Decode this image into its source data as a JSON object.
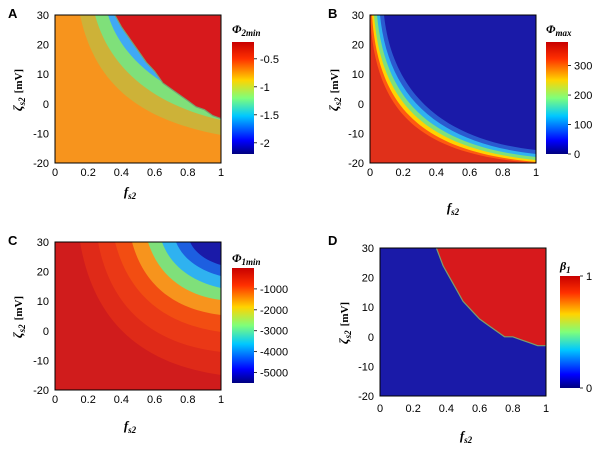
{
  "chart_data": [
    {
      "type": "heatmap",
      "panel": "A",
      "colorbar_label": {
        "main": "Φ",
        "sub": "2min"
      },
      "xlabel": {
        "main": "f",
        "sub": "s2"
      },
      "ylabel": {
        "main": "ζ",
        "sub": "s2",
        "unit": "[mV]"
      },
      "xlim": [
        0,
        1
      ],
      "ylim": [
        -20,
        30
      ],
      "xticks": [
        "0",
        "0.2",
        "0.4",
        "0.6",
        "0.8",
        "1"
      ],
      "yticks": [
        "30",
        "20",
        "10",
        "0",
        "-10",
        "-20"
      ],
      "colorbar_range": [
        -2.2,
        -0.2
      ],
      "colorbar_ticks": [
        "-0.5",
        "-1",
        "-1.5",
        "-2"
      ],
      "colorbar_tick_values": [
        -0.5,
        -1,
        -1.5,
        -2
      ],
      "boundary": [
        [
          0.36,
          30
        ],
        [
          0.4,
          26
        ],
        [
          0.45,
          22
        ],
        [
          0.5,
          18
        ],
        [
          0.55,
          14
        ],
        [
          0.6,
          11
        ],
        [
          0.65,
          7
        ],
        [
          0.7,
          5
        ],
        [
          0.75,
          3
        ],
        [
          0.8,
          1
        ],
        [
          0.85,
          -1
        ],
        [
          0.9,
          -2
        ],
        [
          0.95,
          -4
        ],
        [
          1.0,
          -5
        ]
      ]
    },
    {
      "type": "heatmap",
      "panel": "B",
      "colorbar_label": {
        "main": "Φ",
        "sub": "max"
      },
      "xlabel": {
        "main": "f",
        "sub": "s2"
      },
      "ylabel": {
        "main": "ζ",
        "sub": "s2",
        "unit": "[mV]"
      },
      "xlim": [
        0,
        1
      ],
      "ylim": [
        -20,
        30
      ],
      "xticks": [
        "0",
        "0.2",
        "0.4",
        "0.6",
        "0.8",
        "1"
      ],
      "yticks": [
        "30",
        "20",
        "10",
        "0",
        "-10",
        "-20"
      ],
      "colorbar_range": [
        0,
        380
      ],
      "colorbar_ticks": [
        "300",
        "200",
        "100",
        "0"
      ],
      "colorbar_tick_values": [
        300,
        200,
        100,
        0
      ]
    },
    {
      "type": "heatmap",
      "panel": "C",
      "colorbar_label": {
        "main": "Φ",
        "sub": "1min"
      },
      "xlabel": {
        "main": "f",
        "sub": "s2"
      },
      "ylabel": {
        "main": "ζ",
        "sub": "s2",
        "unit": "[mV]"
      },
      "xlim": [
        0,
        1
      ],
      "ylim": [
        -20,
        30
      ],
      "xticks": [
        "0",
        "0.2",
        "0.4",
        "0.6",
        "0.8",
        "1"
      ],
      "yticks": [
        "30",
        "20",
        "10",
        "0",
        "-10",
        "-20"
      ],
      "colorbar_range": [
        -5500,
        0
      ],
      "colorbar_ticks": [
        "-1000",
        "-2000",
        "-3000",
        "-4000",
        "-5000"
      ],
      "colorbar_tick_values": [
        -1000,
        -2000,
        -3000,
        -4000,
        -5000
      ]
    },
    {
      "type": "heatmap",
      "panel": "D",
      "colorbar_label": {
        "main": "β",
        "sub": "1"
      },
      "xlabel": {
        "main": "f",
        "sub": "s2"
      },
      "ylabel": {
        "main": "ζ",
        "sub": "s2",
        "unit": "[mV]"
      },
      "xlim": [
        0,
        1
      ],
      "ylim": [
        -20,
        30
      ],
      "xticks": [
        "0",
        "0.2",
        "0.4",
        "0.6",
        "0.8",
        "1"
      ],
      "yticks": [
        "30",
        "20",
        "10",
        "0",
        "-10",
        "-20"
      ],
      "colorbar_range": [
        0,
        1
      ],
      "colorbar_ticks": [
        "1",
        "0"
      ],
      "colorbar_tick_values": [
        1,
        0
      ],
      "boundary": [
        [
          0.34,
          30
        ],
        [
          0.38,
          24
        ],
        [
          0.42,
          20
        ],
        [
          0.46,
          16
        ],
        [
          0.5,
          12
        ],
        [
          0.55,
          9
        ],
        [
          0.6,
          6
        ],
        [
          0.65,
          4
        ],
        [
          0.7,
          2
        ],
        [
          0.75,
          0
        ],
        [
          0.8,
          0
        ],
        [
          0.85,
          -1
        ],
        [
          0.9,
          -2
        ],
        [
          0.95,
          -3
        ],
        [
          1.0,
          -3
        ]
      ]
    }
  ],
  "colors": {
    "red": "#d7191c",
    "orange": "#f7941d",
    "olive": "#cdb238",
    "green": "#7fe07a",
    "blue": "#1a1aa8",
    "boundary": "#7aa070"
  }
}
